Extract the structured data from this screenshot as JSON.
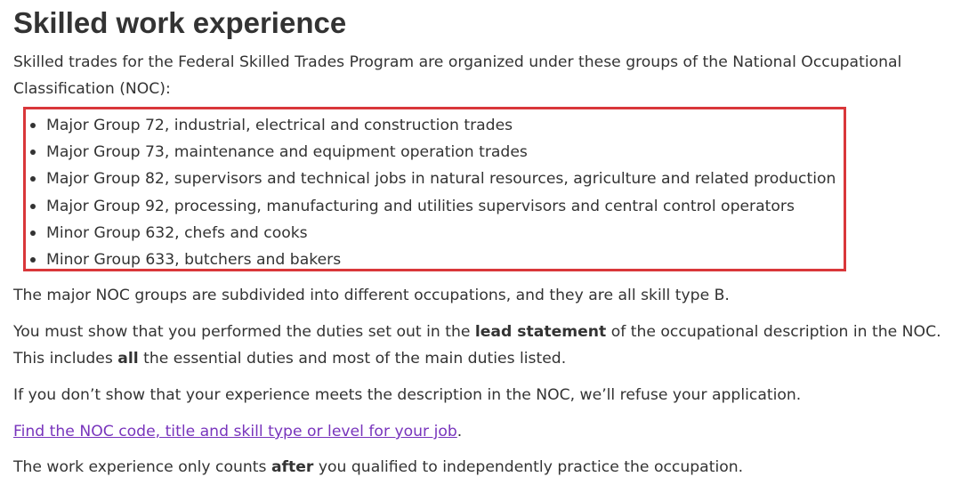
{
  "heading": "Skilled work experience",
  "intro": "Skilled trades for the Federal Skilled Trades Program are organized under these groups of the National Occupational Classification (NOC):",
  "groups": [
    "Major Group 72, industrial, electrical and construction trades",
    "Major Group 73, maintenance and equipment operation trades",
    "Major Group 82, supervisors and technical jobs in natural resources, agriculture and related production",
    "Major Group 92, processing, manufacturing and utilities supervisors and central control operators",
    "Minor Group 632, chefs and cooks",
    "Minor Group 633, butchers and bakers"
  ],
  "highlight_color": "#d9373a",
  "link_color": "#7834bc",
  "para_subdivided": "The major NOC groups are subdivided into different occupations, and they are all skill type B.",
  "para_duties": {
    "before": "You must show that you performed the duties set out in the ",
    "bold1": "lead statement",
    "middle": " of the occupational description in the NOC. This includes ",
    "bold2": "all",
    "after": " the essential duties and most of the main duties listed."
  },
  "para_refuse": "If you don’t show that your experience meets the description in the NOC, we’ll refuse your application.",
  "link": {
    "text": "Find the NOC code, title and skill type or level for your job",
    "suffix": "."
  },
  "para_counts": {
    "before": "The work experience only counts ",
    "bold": "after",
    "after": " you qualified to independently practice the occupation."
  }
}
